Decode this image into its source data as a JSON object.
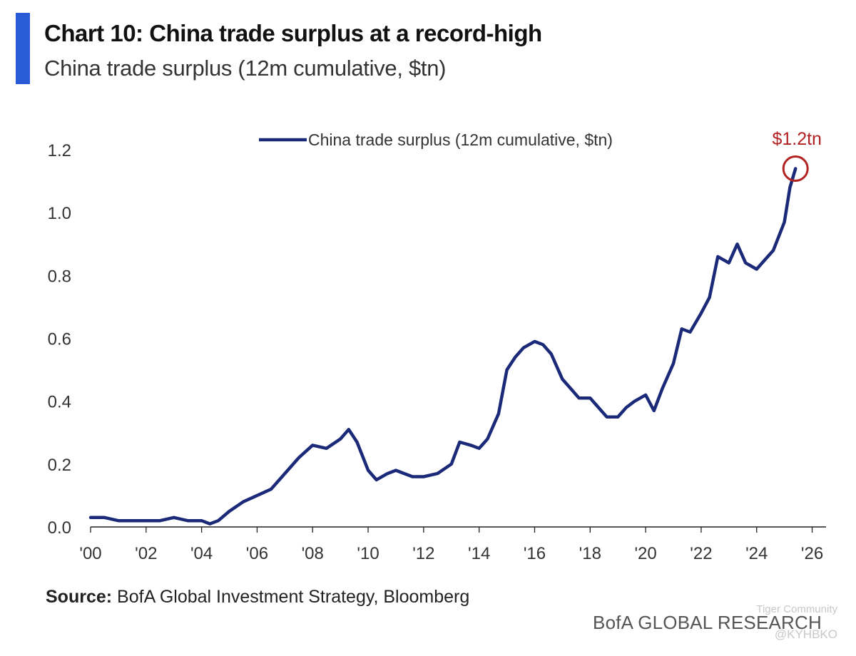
{
  "header": {
    "title": "Chart 10: China trade surplus at a record-high",
    "subtitle": "China trade surplus (12m cumulative, $tn)"
  },
  "footer": {
    "source_label": "Source:",
    "source_text": "BofA Global Investment Strategy, Bloomberg",
    "brand": "BofA GLOBAL RESEARCH"
  },
  "watermark": {
    "line1": "Tiger Community",
    "line2": "@KYHBKO"
  },
  "colors": {
    "accent": "#2a5bd7",
    "line": "#1b2a78",
    "annotation": "#b22222"
  },
  "chart_data": {
    "type": "line",
    "legend": {
      "label": "China trade surplus (12m cumulative, $tn)",
      "placement": "top-center"
    },
    "ylim": [
      0,
      1.2
    ],
    "yticks": [
      0.0,
      0.2,
      0.4,
      0.6,
      0.8,
      1.0,
      1.2
    ],
    "ytick_labels": [
      "0.0",
      "0.2",
      "0.4",
      "0.6",
      "0.8",
      "1.0",
      "1.2"
    ],
    "xlim": [
      2000,
      2026.5
    ],
    "xticks": [
      2000,
      2002,
      2004,
      2006,
      2008,
      2010,
      2012,
      2014,
      2016,
      2018,
      2020,
      2022,
      2024,
      2026
    ],
    "xtick_labels": [
      "'00",
      "'02",
      "'04",
      "'06",
      "'08",
      "'10",
      "'12",
      "'14",
      "'16",
      "'18",
      "'20",
      "'22",
      "'24",
      "'26"
    ],
    "grid": false,
    "annotation": {
      "label": "$1.2tn",
      "x": 2025.4,
      "y": 1.14
    },
    "series": [
      {
        "name": "China trade surplus (12m cumulative, $tn)",
        "x": [
          2000.0,
          2000.5,
          2001.0,
          2001.5,
          2002.0,
          2002.5,
          2003.0,
          2003.5,
          2004.0,
          2004.3,
          2004.6,
          2005.0,
          2005.5,
          2006.0,
          2006.5,
          2007.0,
          2007.5,
          2008.0,
          2008.5,
          2009.0,
          2009.3,
          2009.6,
          2010.0,
          2010.3,
          2010.7,
          2011.0,
          2011.3,
          2011.6,
          2012.0,
          2012.5,
          2013.0,
          2013.3,
          2013.7,
          2014.0,
          2014.3,
          2014.7,
          2015.0,
          2015.3,
          2015.6,
          2016.0,
          2016.3,
          2016.6,
          2017.0,
          2017.3,
          2017.6,
          2018.0,
          2018.3,
          2018.6,
          2019.0,
          2019.3,
          2019.6,
          2020.0,
          2020.3,
          2020.6,
          2021.0,
          2021.3,
          2021.6,
          2022.0,
          2022.3,
          2022.6,
          2023.0,
          2023.3,
          2023.6,
          2024.0,
          2024.3,
          2024.6,
          2025.0,
          2025.2,
          2025.4
        ],
        "values": [
          0.03,
          0.03,
          0.02,
          0.02,
          0.02,
          0.02,
          0.03,
          0.02,
          0.02,
          0.01,
          0.02,
          0.05,
          0.08,
          0.1,
          0.12,
          0.17,
          0.22,
          0.26,
          0.25,
          0.28,
          0.31,
          0.27,
          0.18,
          0.15,
          0.17,
          0.18,
          0.17,
          0.16,
          0.16,
          0.17,
          0.2,
          0.27,
          0.26,
          0.25,
          0.28,
          0.36,
          0.5,
          0.54,
          0.57,
          0.59,
          0.58,
          0.55,
          0.47,
          0.44,
          0.41,
          0.41,
          0.38,
          0.35,
          0.35,
          0.38,
          0.4,
          0.42,
          0.37,
          0.44,
          0.52,
          0.63,
          0.62,
          0.68,
          0.73,
          0.86,
          0.84,
          0.9,
          0.84,
          0.82,
          0.85,
          0.88,
          0.97,
          1.08,
          1.14
        ]
      }
    ]
  }
}
